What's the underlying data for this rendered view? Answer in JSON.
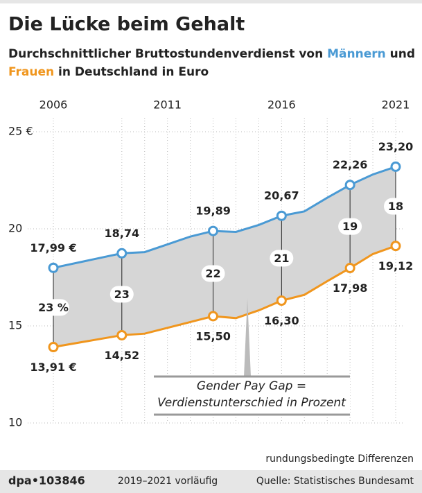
{
  "chart_data": {
    "type": "line",
    "title": "Die Lücke beim Gehalt",
    "subtitle": {
      "before": "Durchschnittlicher Bruttostundenverdienst von",
      "middle": "und",
      "after": "in Deutschland in Euro"
    },
    "x": [
      2006,
      2009,
      2010,
      2011,
      2012,
      2013,
      2014,
      2015,
      2016,
      2017,
      2018,
      2019,
      2020,
      2021
    ],
    "series": [
      {
        "name": "Männern",
        "color": "#4a9ad4",
        "values": [
          17.99,
          18.74,
          18.8,
          19.2,
          19.6,
          19.89,
          19.84,
          20.2,
          20.67,
          20.9,
          21.6,
          22.26,
          22.8,
          23.2
        ],
        "value_labels": [
          "17,99 €",
          "18,74",
          null,
          null,
          null,
          "19,89",
          null,
          null,
          "20,67",
          null,
          null,
          "22,26",
          null,
          "23,20"
        ]
      },
      {
        "name": "Frauen",
        "color": "#f0961e",
        "values": [
          13.91,
          14.52,
          14.6,
          14.9,
          15.2,
          15.5,
          15.4,
          15.8,
          16.3,
          16.6,
          17.3,
          17.98,
          18.7,
          19.12
        ],
        "value_labels": [
          "13,91 €",
          "14,52",
          null,
          null,
          null,
          "15,50",
          null,
          null,
          "16,30",
          null,
          null,
          "17,98",
          null,
          "19,12"
        ]
      }
    ],
    "gap": {
      "x": [
        2006,
        2009,
        2013,
        2016,
        2019,
        2021
      ],
      "values": [
        23,
        23,
        22,
        21,
        19,
        18
      ],
      "value_labels": [
        "23 %",
        "23",
        "22",
        "21",
        "19",
        "18"
      ]
    },
    "xlim": [
      2006,
      2021
    ],
    "xticks": [
      2006,
      2011,
      2016,
      2021
    ],
    "ylim": [
      10,
      25
    ],
    "yticks": [
      10,
      15,
      20,
      {
        "value": 25,
        "label": "25 €"
      }
    ],
    "grid": true,
    "annotation": [
      "Gender Pay Gap =",
      "Verdienstunterschied in Prozent"
    ],
    "notes": {
      "rounding": "rundungsbedingte Differenzen",
      "id": "dpa•103846",
      "preliminary": "2019–2021 vorläufig",
      "source": "Quelle: Statistisches Bundesamt"
    }
  }
}
